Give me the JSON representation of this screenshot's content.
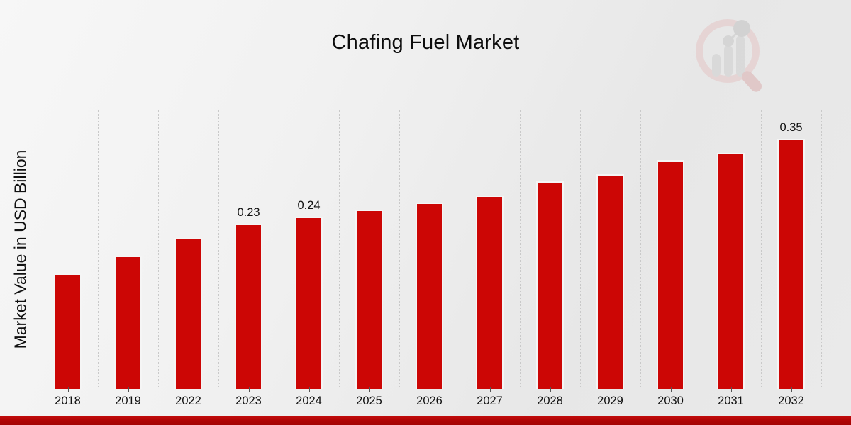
{
  "chart_data": {
    "type": "bar",
    "title": "Chafing Fuel Market",
    "xlabel": "",
    "ylabel": "Market Value in USD Billion",
    "categories": [
      "2018",
      "2019",
      "2022",
      "2023",
      "2024",
      "2025",
      "2026",
      "2027",
      "2028",
      "2029",
      "2030",
      "2031",
      "2032"
    ],
    "values": [
      0.16,
      0.185,
      0.21,
      0.23,
      0.24,
      0.25,
      0.26,
      0.27,
      0.29,
      0.3,
      0.32,
      0.33,
      0.35
    ],
    "bar_labels": [
      "",
      "",
      "",
      "0.23",
      "0.24",
      "",
      "",
      "",
      "",
      "",
      "",
      "",
      "0.35"
    ],
    "unit": "USD Billion",
    "ylim": [
      0,
      0.391
    ],
    "grid": "vertical dotted gridlines between categories",
    "legend_position": "none",
    "bar_color": "#cc0605",
    "bar_stroke_color": "#f5f5f5",
    "axis_color": "#9a9a9a",
    "background_color": "#ececec"
  },
  "footer": {
    "band_color": "#b20505"
  },
  "watermark": {
    "icon": "market-research-future-logo",
    "ring_color": "#e5caca",
    "bars_color": "#d2d2d2",
    "node_color": "#c6c6c6",
    "handle_color": "#dcb5b5"
  }
}
